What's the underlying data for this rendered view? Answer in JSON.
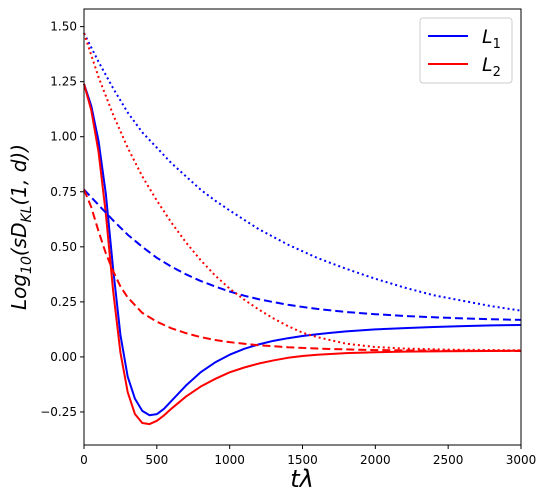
{
  "chart_data": {
    "type": "line",
    "xlabel": "tλ",
    "ylabel": {
      "prefix": "Log",
      "base": "10",
      "open": "(sD",
      "sub": "KL",
      "close": "(1, d))"
    },
    "xlim": [
      0,
      3000
    ],
    "ylim": [
      -0.4,
      1.58
    ],
    "xticks": [
      {
        "value": 0,
        "label": "0"
      },
      {
        "value": 500,
        "label": "500"
      },
      {
        "value": 1000,
        "label": "1000"
      },
      {
        "value": 1500,
        "label": "1500"
      },
      {
        "value": 2000,
        "label": "2000"
      },
      {
        "value": 2500,
        "label": "2500"
      },
      {
        "value": 3000,
        "label": "3000"
      }
    ],
    "yticks": [
      {
        "value": -0.25,
        "label": "−0.25"
      },
      {
        "value": 0.0,
        "label": "0.00"
      },
      {
        "value": 0.25,
        "label": "0.25"
      },
      {
        "value": 0.5,
        "label": "0.50"
      },
      {
        "value": 0.75,
        "label": "0.75"
      },
      {
        "value": 1.0,
        "label": "1.00"
      },
      {
        "value": 1.25,
        "label": "1.25"
      },
      {
        "value": 1.5,
        "label": "1.50"
      }
    ],
    "grid": false,
    "legend_position": "top-right",
    "legend": [
      {
        "name": "L",
        "sub": "1",
        "color": "#0000ff"
      },
      {
        "name": "L",
        "sub": "2",
        "color": "#ff0000"
      }
    ],
    "series": [
      {
        "legend": 0,
        "color": "#0000ff",
        "style": "solid",
        "points": [
          [
            0,
            1.24
          ],
          [
            50,
            1.14
          ],
          [
            100,
            0.98
          ],
          [
            150,
            0.74
          ],
          [
            200,
            0.4
          ],
          [
            250,
            0.1
          ],
          [
            300,
            -0.09
          ],
          [
            350,
            -0.19
          ],
          [
            400,
            -0.245
          ],
          [
            450,
            -0.265
          ],
          [
            500,
            -0.26
          ],
          [
            550,
            -0.235
          ],
          [
            600,
            -0.2
          ],
          [
            700,
            -0.13
          ],
          [
            800,
            -0.07
          ],
          [
            900,
            -0.025
          ],
          [
            1000,
            0.01
          ],
          [
            1100,
            0.037
          ],
          [
            1200,
            0.057
          ],
          [
            1300,
            0.073
          ],
          [
            1400,
            0.085
          ],
          [
            1500,
            0.095
          ],
          [
            1600,
            0.103
          ],
          [
            1700,
            0.11
          ],
          [
            1800,
            0.116
          ],
          [
            2000,
            0.125
          ],
          [
            2200,
            0.131
          ],
          [
            2400,
            0.136
          ],
          [
            2600,
            0.14
          ],
          [
            2800,
            0.143
          ],
          [
            3000,
            0.145
          ]
        ]
      },
      {
        "legend": 1,
        "color": "#ff0000",
        "style": "solid",
        "points": [
          [
            0,
            1.24
          ],
          [
            50,
            1.12
          ],
          [
            100,
            0.93
          ],
          [
            150,
            0.65
          ],
          [
            200,
            0.3
          ],
          [
            250,
            0.02
          ],
          [
            300,
            -0.16
          ],
          [
            350,
            -0.26
          ],
          [
            400,
            -0.3
          ],
          [
            450,
            -0.305
          ],
          [
            500,
            -0.29
          ],
          [
            550,
            -0.265
          ],
          [
            600,
            -0.235
          ],
          [
            700,
            -0.18
          ],
          [
            800,
            -0.135
          ],
          [
            900,
            -0.1
          ],
          [
            1000,
            -0.07
          ],
          [
            1100,
            -0.048
          ],
          [
            1200,
            -0.03
          ],
          [
            1300,
            -0.016
          ],
          [
            1400,
            -0.004
          ],
          [
            1500,
            0.004
          ],
          [
            1600,
            0.01
          ],
          [
            1800,
            0.017
          ],
          [
            2000,
            0.021
          ],
          [
            2200,
            0.024
          ],
          [
            2500,
            0.026
          ],
          [
            3000,
            0.028
          ]
        ]
      },
      {
        "legend": 0,
        "color": "#0000ff",
        "style": "dashed",
        "points": [
          [
            0,
            0.76
          ],
          [
            100,
            0.69
          ],
          [
            200,
            0.62
          ],
          [
            300,
            0.555
          ],
          [
            400,
            0.5
          ],
          [
            500,
            0.45
          ],
          [
            600,
            0.41
          ],
          [
            700,
            0.375
          ],
          [
            800,
            0.345
          ],
          [
            900,
            0.32
          ],
          [
            1000,
            0.297
          ],
          [
            1100,
            0.278
          ],
          [
            1200,
            0.262
          ],
          [
            1300,
            0.249
          ],
          [
            1400,
            0.237
          ],
          [
            1500,
            0.227
          ],
          [
            1600,
            0.218
          ],
          [
            1800,
            0.204
          ],
          [
            2000,
            0.194
          ],
          [
            2200,
            0.186
          ],
          [
            2400,
            0.18
          ],
          [
            2600,
            0.175
          ],
          [
            2800,
            0.171
          ],
          [
            3000,
            0.168
          ]
        ]
      },
      {
        "legend": 1,
        "color": "#ff0000",
        "style": "dashed",
        "points": [
          [
            0,
            0.76
          ],
          [
            50,
            0.68
          ],
          [
            100,
            0.57
          ],
          [
            150,
            0.47
          ],
          [
            200,
            0.39
          ],
          [
            250,
            0.32
          ],
          [
            300,
            0.27
          ],
          [
            400,
            0.2
          ],
          [
            500,
            0.16
          ],
          [
            600,
            0.13
          ],
          [
            700,
            0.108
          ],
          [
            800,
            0.09
          ],
          [
            900,
            0.077
          ],
          [
            1000,
            0.067
          ],
          [
            1200,
            0.053
          ],
          [
            1400,
            0.044
          ],
          [
            1600,
            0.038
          ],
          [
            1800,
            0.034
          ],
          [
            2000,
            0.031
          ],
          [
            2500,
            0.028
          ],
          [
            3000,
            0.027
          ]
        ]
      },
      {
        "legend": 0,
        "color": "#0000ff",
        "style": "dotted",
        "points": [
          [
            0,
            1.47
          ],
          [
            100,
            1.34
          ],
          [
            200,
            1.22
          ],
          [
            300,
            1.11
          ],
          [
            400,
            1.02
          ],
          [
            500,
            0.95
          ],
          [
            600,
            0.88
          ],
          [
            700,
            0.82
          ],
          [
            800,
            0.76
          ],
          [
            900,
            0.71
          ],
          [
            1000,
            0.665
          ],
          [
            1200,
            0.58
          ],
          [
            1400,
            0.51
          ],
          [
            1600,
            0.45
          ],
          [
            1800,
            0.4
          ],
          [
            2000,
            0.355
          ],
          [
            2200,
            0.315
          ],
          [
            2400,
            0.28
          ],
          [
            2600,
            0.255
          ],
          [
            2800,
            0.23
          ],
          [
            3000,
            0.21
          ]
        ]
      },
      {
        "legend": 1,
        "color": "#ff0000",
        "style": "dotted",
        "points": [
          [
            0,
            1.47
          ],
          [
            100,
            1.27
          ],
          [
            200,
            1.1
          ],
          [
            300,
            0.95
          ],
          [
            400,
            0.82
          ],
          [
            500,
            0.71
          ],
          [
            600,
            0.61
          ],
          [
            700,
            0.52
          ],
          [
            800,
            0.44
          ],
          [
            900,
            0.37
          ],
          [
            1000,
            0.31
          ],
          [
            1100,
            0.26
          ],
          [
            1200,
            0.215
          ],
          [
            1300,
            0.175
          ],
          [
            1400,
            0.14
          ],
          [
            1500,
            0.11
          ],
          [
            1600,
            0.09
          ],
          [
            1800,
            0.06
          ],
          [
            2000,
            0.045
          ],
          [
            2200,
            0.038
          ],
          [
            2500,
            0.033
          ],
          [
            3000,
            0.03
          ]
        ]
      }
    ]
  }
}
